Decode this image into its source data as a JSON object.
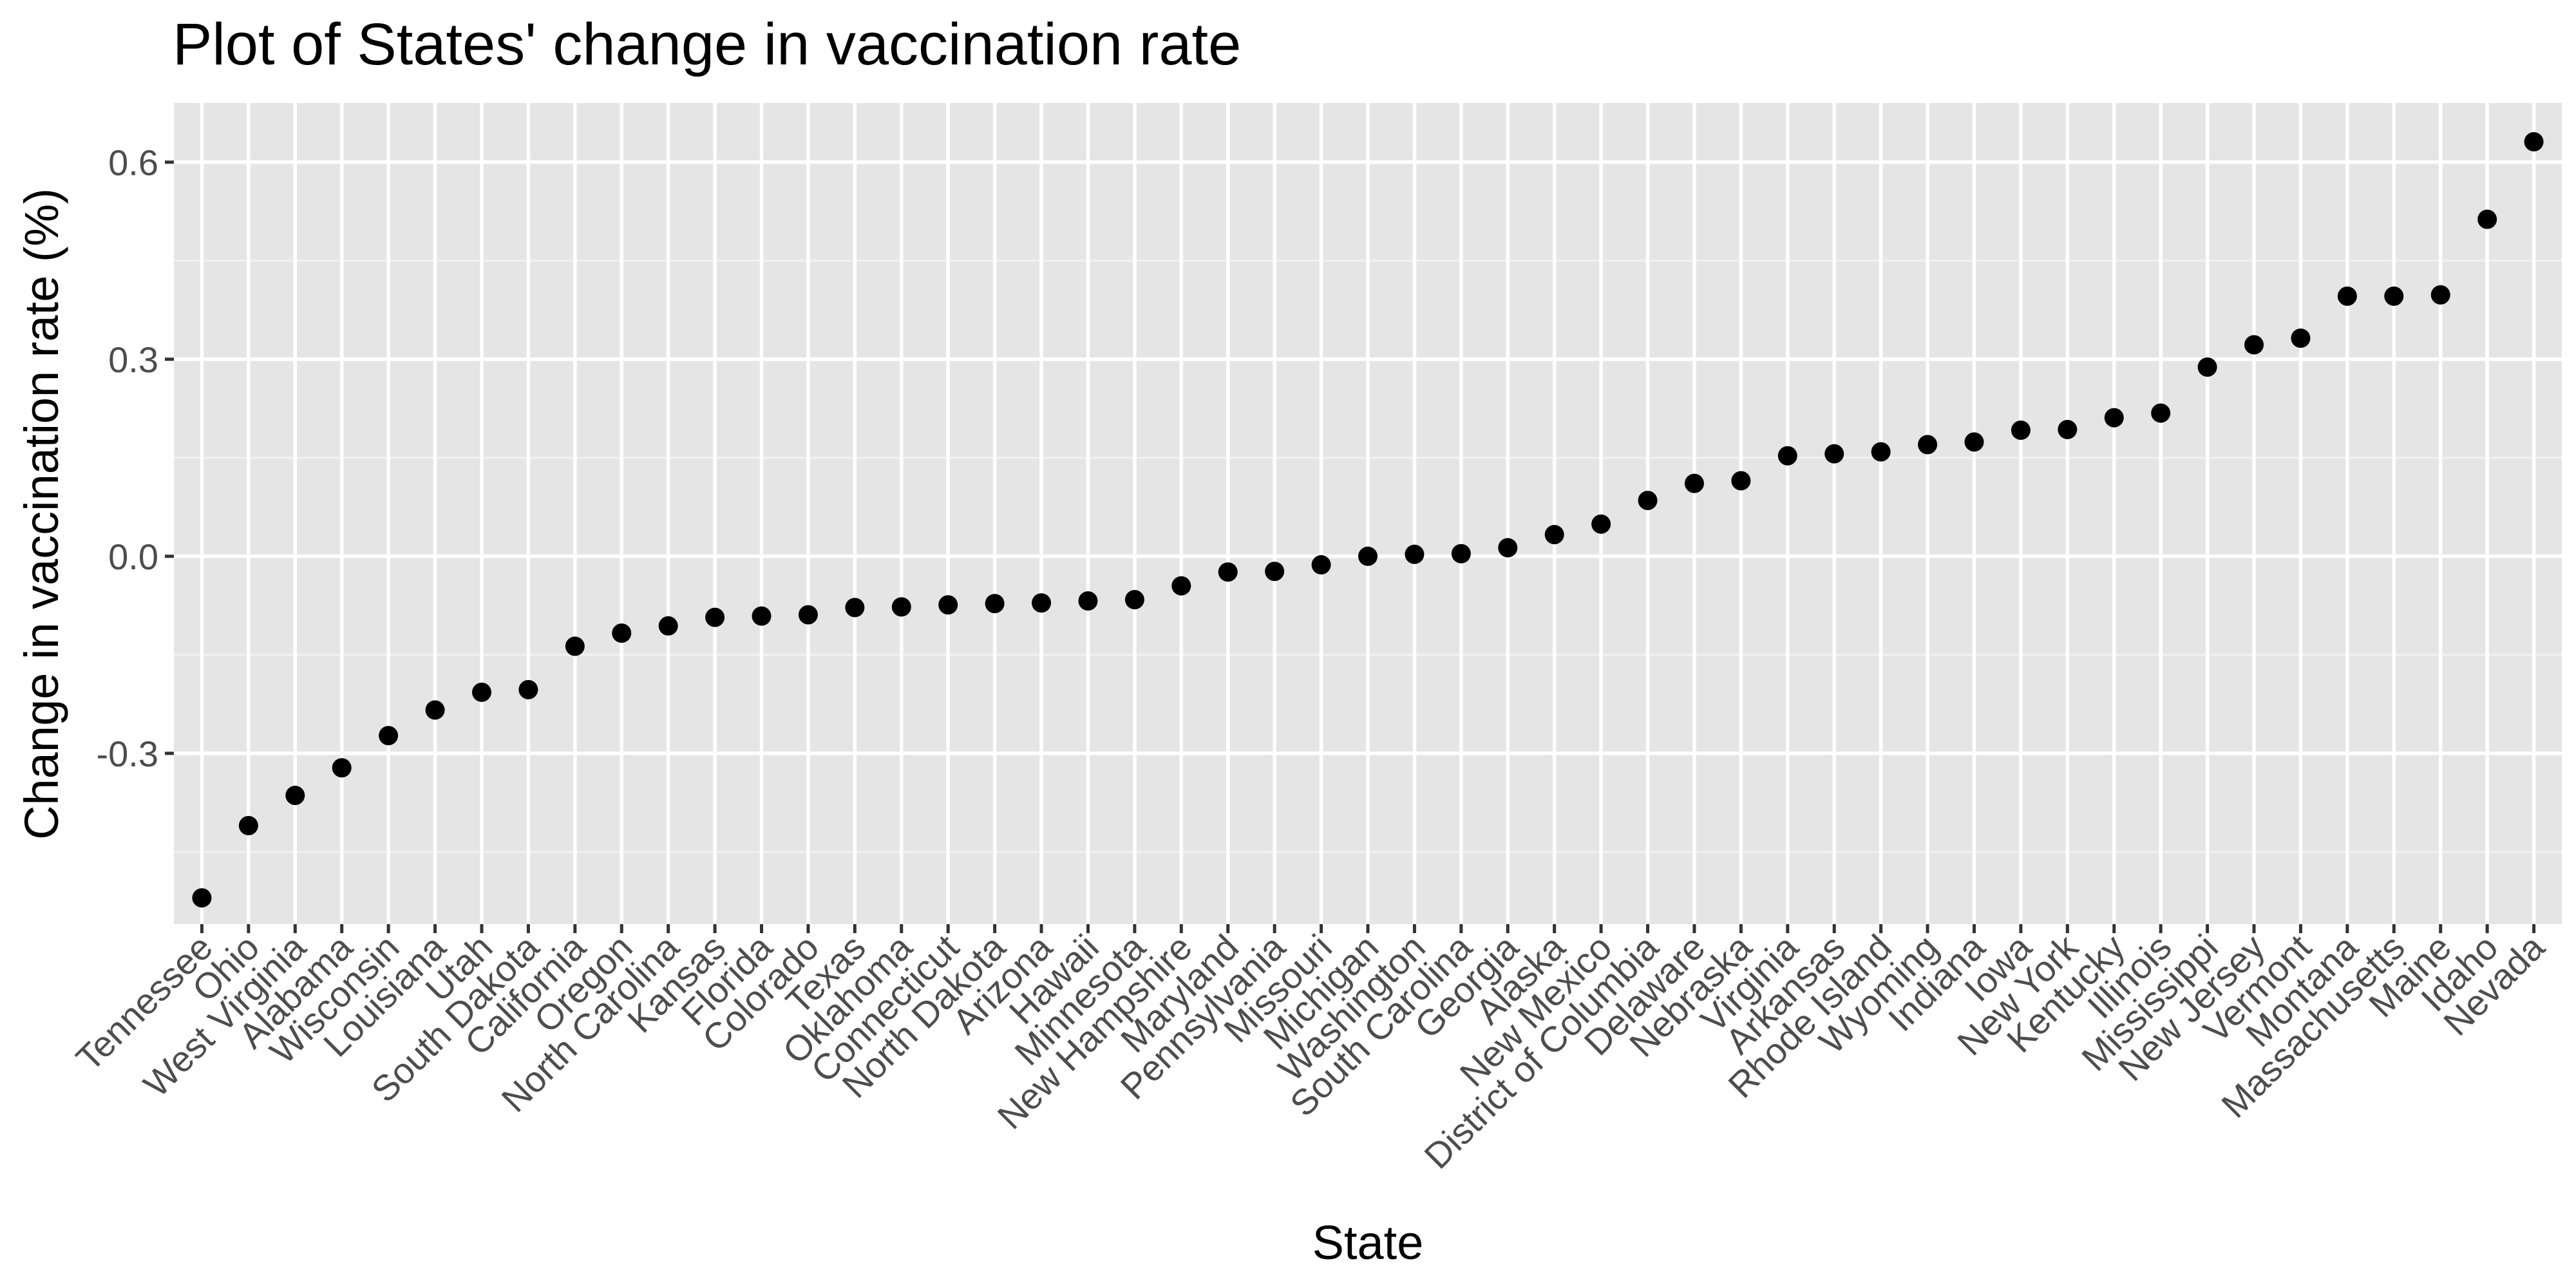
{
  "chart_data": {
    "type": "scatter",
    "title": "Plot of States' change in vaccination rate",
    "xlabel": "State",
    "ylabel": "Change in vaccination rate (%)",
    "ylim": [
      -0.56,
      0.69
    ],
    "yticks": [
      -0.3,
      0.0,
      0.3,
      0.6
    ],
    "ytick_labels": [
      "-0.3",
      "0.0",
      "0.3",
      "0.6"
    ],
    "grid": true,
    "legend": "none",
    "point_color": "#000000",
    "panel_background": "#e5e5e5",
    "categories": [
      "Tennessee",
      "Ohio",
      "West Virginia",
      "Alabama",
      "Wisconsin",
      "Louisiana",
      "Utah",
      "South Dakota",
      "California",
      "Oregon",
      "North Carolina",
      "Kansas",
      "Florida",
      "Colorado",
      "Texas",
      "Oklahoma",
      "Connecticut",
      "North Dakota",
      "Arizona",
      "Hawaii",
      "Minnesota",
      "New Hampshire",
      "Maryland",
      "Pennsylvania",
      "Missouri",
      "Michigan",
      "Washington",
      "South Carolina",
      "Georgia",
      "Alaska",
      "New Mexico",
      "District of Columbia",
      "Delaware",
      "Nebraska",
      "Virginia",
      "Arkansas",
      "Rhode Island",
      "Wyoming",
      "Indiana",
      "Iowa",
      "New York",
      "Kentucky",
      "Illinois",
      "Mississippi",
      "New Jersey",
      "Vermont",
      "Montana",
      "Massachusetts",
      "Maine",
      "Idaho",
      "Nevada"
    ],
    "values": [
      -0.52,
      -0.41,
      -0.364,
      -0.322,
      -0.273,
      -0.234,
      -0.207,
      -0.203,
      -0.137,
      -0.117,
      -0.106,
      -0.093,
      -0.091,
      -0.089,
      -0.078,
      -0.077,
      -0.074,
      -0.072,
      -0.071,
      -0.068,
      -0.066,
      -0.045,
      -0.024,
      -0.023,
      -0.013,
      0.0,
      0.003,
      0.004,
      0.013,
      0.033,
      0.049,
      0.085,
      0.111,
      0.115,
      0.153,
      0.156,
      0.159,
      0.17,
      0.174,
      0.192,
      0.193,
      0.211,
      0.218,
      0.288,
      0.322,
      0.332,
      0.396,
      0.396,
      0.398,
      0.513,
      0.631
    ]
  }
}
